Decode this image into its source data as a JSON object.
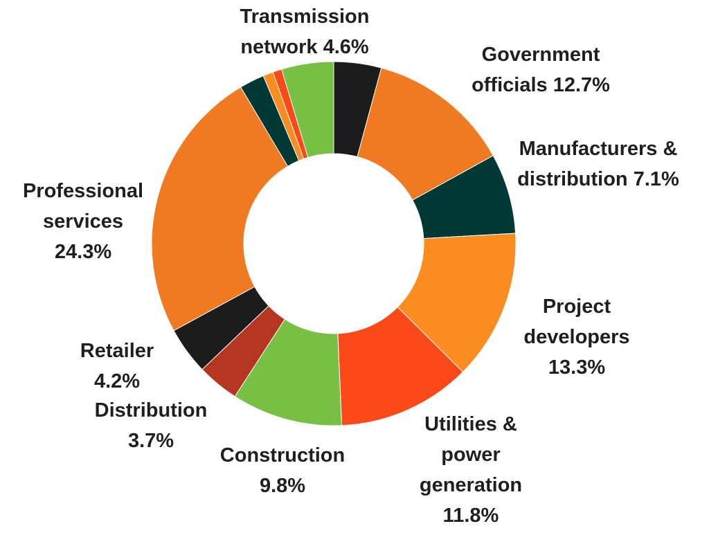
{
  "chart_data": {
    "type": "pie",
    "variant": "donut",
    "title": "",
    "slices": [
      {
        "name": "",
        "value": 4.2,
        "color": "#1c1c1c"
      },
      {
        "name": "Government officials",
        "value": 12.7,
        "color": "#f07a22",
        "label_lines": [
          "Government",
          "officials 12.7%"
        ]
      },
      {
        "name": "Manufacturers & distribution",
        "value": 7.1,
        "color": "#003835",
        "label_lines": [
          "Manufacturers &",
          "distribution 7.1%"
        ]
      },
      {
        "name": "Project developers",
        "value": 13.3,
        "color": "#fb8c1f",
        "label_lines": [
          "Project",
          "developers",
          "13.3%"
        ]
      },
      {
        "name": "Utilities & power generation",
        "value": 11.8,
        "color": "#fb4a17",
        "label_lines": [
          "Utilities &",
          "power",
          "generation",
          "11.8%"
        ]
      },
      {
        "name": "Construction",
        "value": 9.8,
        "color": "#78c044",
        "label_lines": [
          "Construction",
          "9.8%"
        ]
      },
      {
        "name": "Distribution",
        "value": 3.7,
        "color": "#b43620",
        "label_lines": [
          "Distribution",
          "3.7%"
        ]
      },
      {
        "name": "Retailer",
        "value": 4.2,
        "color": "#1c1c1c",
        "label_lines": [
          "Retailer",
          "4.2%"
        ]
      },
      {
        "name": "Professional services",
        "value": 24.3,
        "color": "#f07a22",
        "label_lines": [
          "Professional",
          "services",
          "24.3%"
        ]
      },
      {
        "name": "",
        "value": 2.2,
        "color": "#003835"
      },
      {
        "name": "",
        "value": 0.9,
        "color": "#fb8c1f"
      },
      {
        "name": "",
        "value": 0.8,
        "color": "#fb4a17"
      },
      {
        "name": "Transmission network",
        "value": 4.6,
        "color": "#78c044",
        "label_lines": [
          "Transmission",
          "network 4.6%"
        ]
      }
    ]
  }
}
